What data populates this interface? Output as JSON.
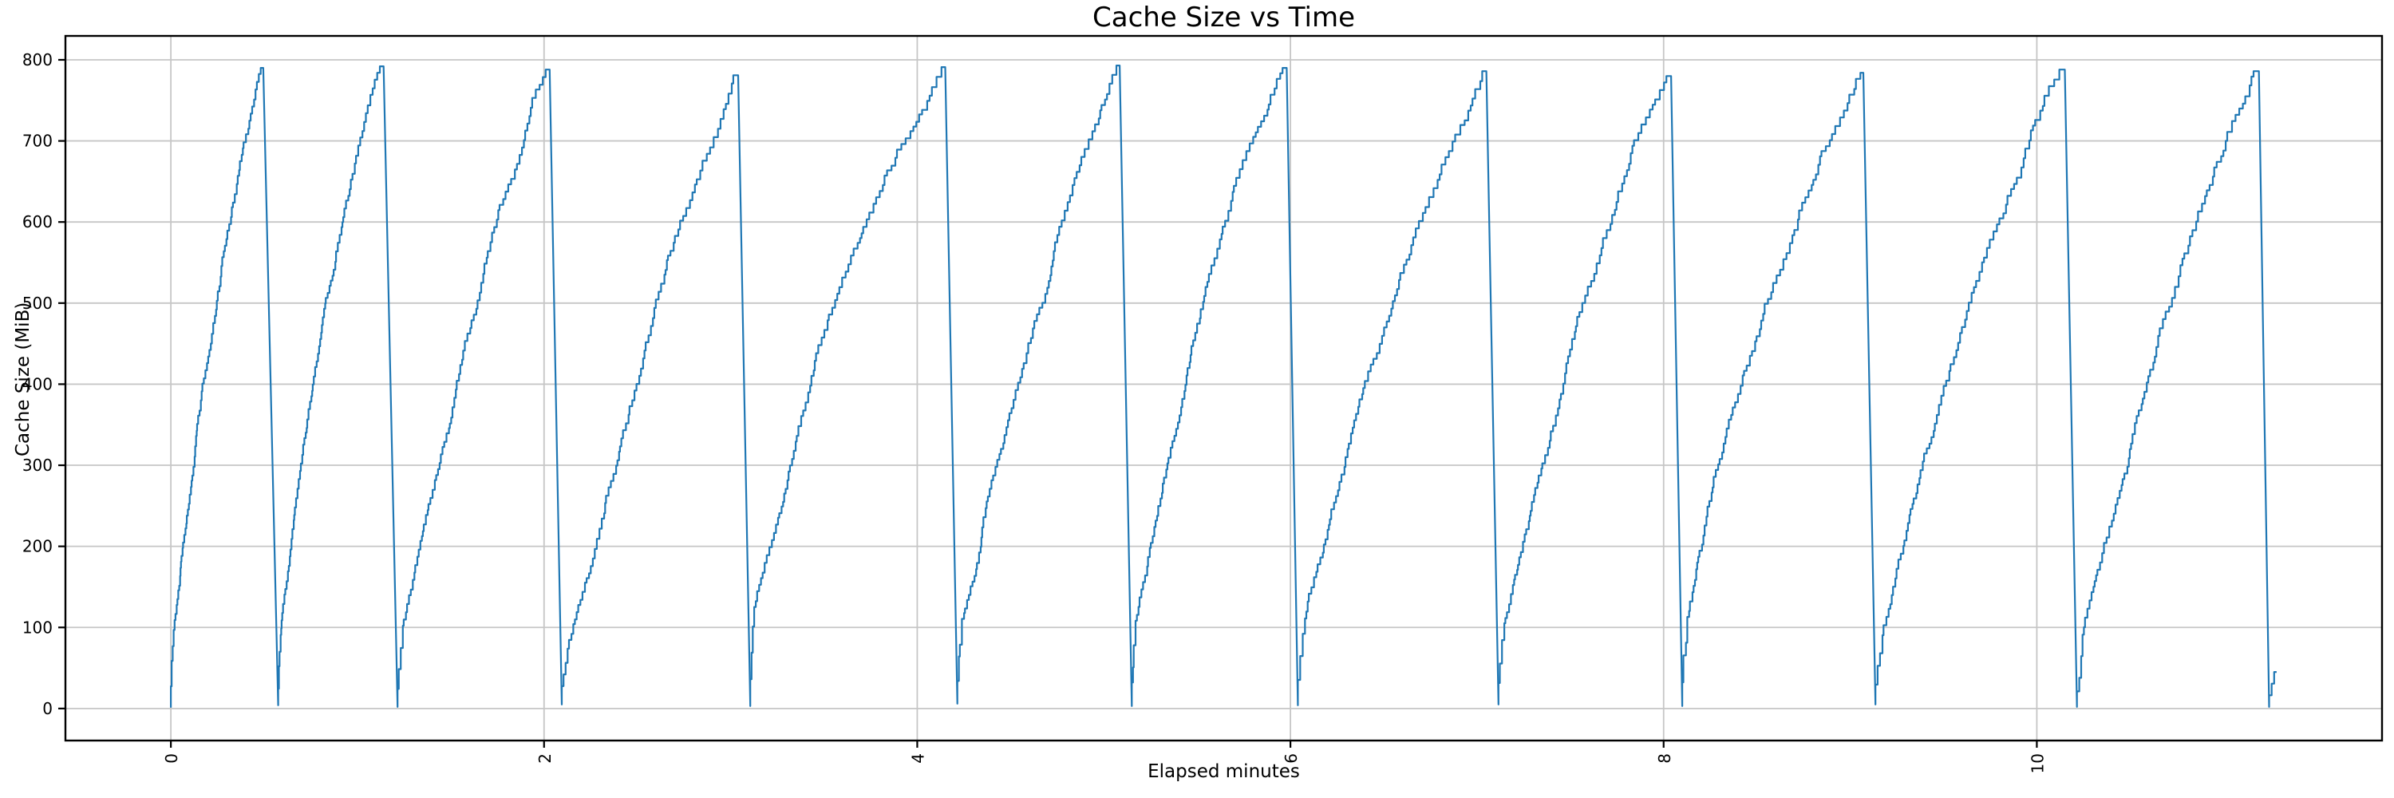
{
  "figure": {
    "title": "Cache Size vs Time",
    "background": "#ffffff"
  },
  "colors": {
    "line": "#1f77b4",
    "grid": "#c6c6c6",
    "spine": "#000000",
    "text": "#000000"
  },
  "chart_data": {
    "type": "line",
    "title": "Cache Size vs Time",
    "xlabel": "Elapsed minutes",
    "ylabel": "Cache Size (MiB)",
    "grid": true,
    "legend": "none",
    "xlim": [
      -0.565,
      11.85
    ],
    "ylim": [
      -39.5,
      829.5
    ],
    "xticks": [
      0,
      2,
      4,
      6,
      8,
      10
    ],
    "yticks": [
      0,
      100,
      200,
      300,
      400,
      500,
      600,
      700,
      800
    ],
    "series_name": "cache-size",
    "pattern": "sawtooth-staircase",
    "step_mib": 10,
    "peak_plateau_minutes": 0.006,
    "cycles": [
      {
        "start_t": 0.0,
        "peak_t": 0.495,
        "start_v": 1,
        "peak_v": 790
      },
      {
        "start_t": 0.575,
        "peak_t": 1.14,
        "start_v": 4,
        "peak_v": 792
      },
      {
        "start_t": 1.215,
        "peak_t": 2.03,
        "start_v": 2,
        "peak_v": 788
      },
      {
        "start_t": 2.095,
        "peak_t": 3.04,
        "start_v": 5,
        "peak_v": 781
      },
      {
        "start_t": 3.105,
        "peak_t": 4.15,
        "start_v": 3,
        "peak_v": 791
      },
      {
        "start_t": 4.215,
        "peak_t": 5.085,
        "start_v": 6,
        "peak_v": 793
      },
      {
        "start_t": 5.15,
        "peak_t": 5.98,
        "start_v": 3,
        "peak_v": 790
      },
      {
        "start_t": 6.04,
        "peak_t": 7.05,
        "start_v": 4,
        "peak_v": 786
      },
      {
        "start_t": 7.115,
        "peak_t": 8.04,
        "start_v": 5,
        "peak_v": 780
      },
      {
        "start_t": 8.1,
        "peak_t": 9.07,
        "start_v": 3,
        "peak_v": 784
      },
      {
        "start_t": 9.135,
        "peak_t": 10.15,
        "start_v": 5,
        "peak_v": 788
      },
      {
        "start_t": 10.215,
        "peak_t": 11.19,
        "start_v": 2,
        "peak_v": 786
      }
    ],
    "tail": {
      "start_t": 11.245,
      "end_t": 11.285,
      "start_v": 2,
      "end_v": 45
    }
  }
}
